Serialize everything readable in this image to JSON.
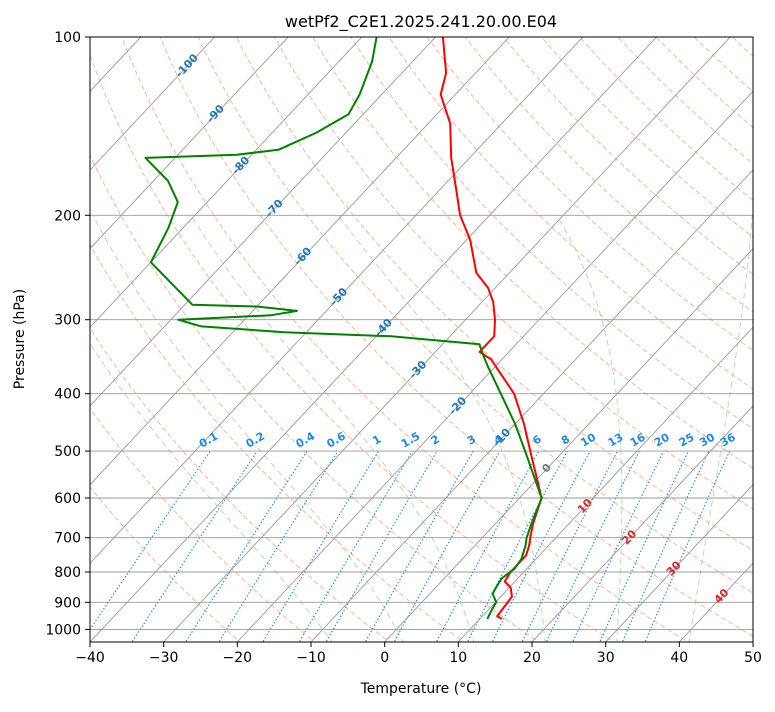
{
  "chart_data": {
    "type": "skew-t",
    "title": "wetPf2_C2E1.2025.241.20.00.E04",
    "xlabel": "Temperature (°C)",
    "ylabel": "Pressure (hPa)",
    "xlim": [
      -40,
      50
    ],
    "ylim": [
      1050,
      100
    ],
    "y_scale": "log",
    "x_ticks": [
      -40,
      -30,
      -20,
      -10,
      0,
      10,
      20,
      30,
      40,
      50
    ],
    "y_ticks": [
      100,
      200,
      300,
      400,
      500,
      600,
      700,
      800,
      900,
      1000
    ],
    "grid": true,
    "colors": {
      "temperature": "#ff0000",
      "dewpoint": "#008000",
      "isotherm": "#9a9a9a",
      "dry_adiabat": "#f4a582",
      "moist_adiabat": "#a6d8a6",
      "mixing_ratio": "#1e88e5",
      "isotherm_label": "#1f77b4",
      "warm_label": "#d62728",
      "dry_adiabat_curve": "#d2b48c"
    },
    "isotherm_labels_cold": [
      {
        "t": -100,
        "p": 112
      },
      {
        "t": -90,
        "p": 135
      },
      {
        "t": -80,
        "p": 165
      },
      {
        "t": -70,
        "p": 195
      },
      {
        "t": -60,
        "p": 235
      },
      {
        "t": -50,
        "p": 275
      },
      {
        "t": -40,
        "p": 310
      },
      {
        "t": -30,
        "p": 365
      },
      {
        "t": -20,
        "p": 420
      },
      {
        "t": -10,
        "p": 475
      }
    ],
    "isotherm_label_zero": {
      "t": 0,
      "p": 535
    },
    "isotherm_labels_warm": [
      {
        "t": 10,
        "p": 620
      },
      {
        "t": 20,
        "p": 700
      },
      {
        "t": 30,
        "p": 790
      },
      {
        "t": 40,
        "p": 880
      }
    ],
    "mixing_ratio_labels": [
      "0.1",
      "0.2",
      "0.4",
      "0.6",
      "1",
      "1.5",
      "2",
      "3",
      "4",
      "6",
      "8",
      "10",
      "13",
      "16",
      "20",
      "25",
      "30",
      "36"
    ],
    "temperature_profile": [
      {
        "p": 960,
        "t": 13.0
      },
      {
        "p": 950,
        "t": 12.0
      },
      {
        "p": 920,
        "t": 11.8
      },
      {
        "p": 880,
        "t": 11.5
      },
      {
        "p": 850,
        "t": 10.2
      },
      {
        "p": 830,
        "t": 8.6
      },
      {
        "p": 800,
        "t": 8.2
      },
      {
        "p": 750,
        "t": 8.2
      },
      {
        "p": 720,
        "t": 7.3
      },
      {
        "p": 700,
        "t": 6.5
      },
      {
        "p": 660,
        "t": 5.0
      },
      {
        "p": 600,
        "t": 3.0
      },
      {
        "p": 500,
        "t": -4.5
      },
      {
        "p": 450,
        "t": -8.8
      },
      {
        "p": 400,
        "t": -14.0
      },
      {
        "p": 350,
        "t": -21.5
      },
      {
        "p": 340,
        "t": -24.0
      },
      {
        "p": 320,
        "t": -24.0
      },
      {
        "p": 300,
        "t": -26.0
      },
      {
        "p": 280,
        "t": -28.5
      },
      {
        "p": 265,
        "t": -31.0
      },
      {
        "p": 250,
        "t": -34.5
      },
      {
        "p": 220,
        "t": -39.5
      },
      {
        "p": 200,
        "t": -44.0
      },
      {
        "p": 180,
        "t": -48.0
      },
      {
        "p": 160,
        "t": -52.5
      },
      {
        "p": 140,
        "t": -57.0
      },
      {
        "p": 125,
        "t": -62.0
      },
      {
        "p": 115,
        "t": -64.0
      },
      {
        "p": 100,
        "t": -69.0
      }
    ],
    "dewpoint_profile": [
      {
        "p": 960,
        "t": 11.0
      },
      {
        "p": 930,
        "t": 10.5
      },
      {
        "p": 900,
        "t": 10.1
      },
      {
        "p": 870,
        "t": 8.5
      },
      {
        "p": 850,
        "t": 8.2
      },
      {
        "p": 820,
        "t": 7.8
      },
      {
        "p": 790,
        "t": 8.3
      },
      {
        "p": 760,
        "t": 8.0
      },
      {
        "p": 720,
        "t": 6.8
      },
      {
        "p": 700,
        "t": 6.0
      },
      {
        "p": 660,
        "t": 4.8
      },
      {
        "p": 600,
        "t": 3.0
      },
      {
        "p": 500,
        "t": -5.2
      },
      {
        "p": 450,
        "t": -10.0
      },
      {
        "p": 400,
        "t": -15.8
      },
      {
        "p": 360,
        "t": -21.0
      },
      {
        "p": 345,
        "t": -23.0
      },
      {
        "p": 330,
        "t": -25.0
      },
      {
        "p": 320,
        "t": -38.0
      },
      {
        "p": 315,
        "t": -53.0
      },
      {
        "p": 308,
        "t": -65.0
      },
      {
        "p": 300,
        "t": -69.0
      },
      {
        "p": 295,
        "t": -57.0
      },
      {
        "p": 290,
        "t": -54.0
      },
      {
        "p": 285,
        "t": -60.0
      },
      {
        "p": 283,
        "t": -69.0
      },
      {
        "p": 240,
        "t": -80.0
      },
      {
        "p": 210,
        "t": -82.0
      },
      {
        "p": 190,
        "t": -84.0
      },
      {
        "p": 175,
        "t": -88.0
      },
      {
        "p": 160,
        "t": -94.0
      },
      {
        "p": 158,
        "t": -82.0
      },
      {
        "p": 155,
        "t": -77.0
      },
      {
        "p": 145,
        "t": -74.0
      },
      {
        "p": 135,
        "t": -72.0
      },
      {
        "p": 125,
        "t": -73.0
      },
      {
        "p": 110,
        "t": -75.5
      },
      {
        "p": 100,
        "t": -78.0
      }
    ]
  }
}
